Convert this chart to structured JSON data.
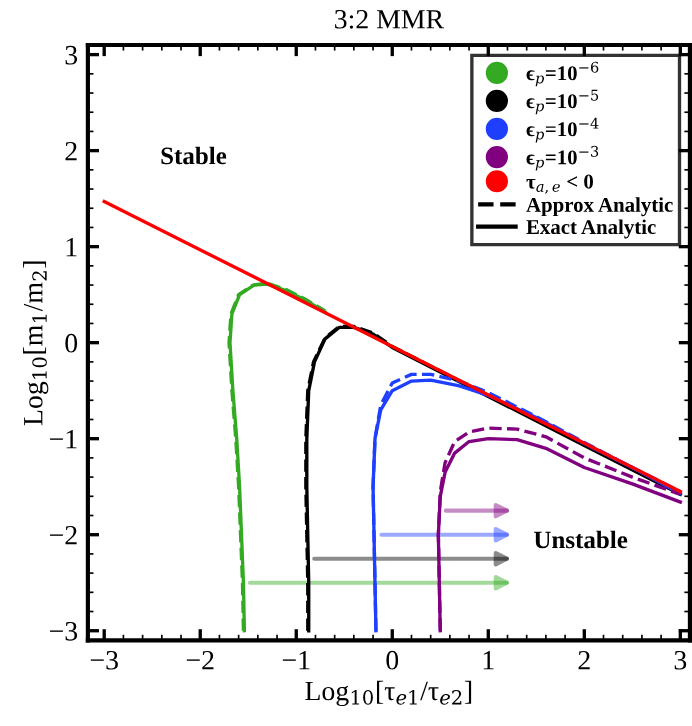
{
  "chart_data": {
    "type": "line",
    "title": "3:2 MMR",
    "xlabel": "Log$_{10}$[τ$_{e1}$/τ$_{e2}$]",
    "ylabel": "Log$_{10}$[m$_{1}$/m$_{2}$]",
    "xlim": [
      -3.17,
      3.1
    ],
    "ylim": [
      -3.1,
      3.1
    ],
    "xticks": [
      {
        "value": -3,
        "label": "−3"
      },
      {
        "value": -2,
        "label": "−2"
      },
      {
        "value": -1,
        "label": "−1"
      },
      0,
      1,
      2,
      3
    ],
    "yticks": [
      {
        "value": -3,
        "label": "−3"
      },
      {
        "value": -2,
        "label": "−2"
      },
      {
        "value": -1,
        "label": "−1"
      },
      0,
      1,
      2,
      3
    ],
    "annotations": [
      "Stable",
      "Unstable",
      "Approx Analytic",
      "Exact Analytic"
    ],
    "legend": "top right",
    "grid": false,
    "marker": "none",
    "series": [
      {
        "color": "#33aa22",
        "line_style": "dashed",
        "x": [
          -1.55,
          -1.56,
          -1.58,
          -1.6,
          -1.63,
          -1.67,
          -1.7,
          -1.68,
          -1.6,
          -1.45,
          -1.3,
          -1.1,
          -0.9,
          -0.7
        ],
        "values": [
          -3,
          -2.5,
          -2,
          -1.5,
          -1,
          -0.5,
          0,
          0.3,
          0.5,
          0.6,
          0.62,
          0.55,
          0.45,
          0.33
        ]
      },
      {
        "name": "ϵ$_{p}$=10$^{−6}$",
        "color": "#33aa22",
        "line_style": "solid",
        "x": [
          -1.54,
          -1.55,
          -1.57,
          -1.59,
          -1.62,
          -1.66,
          -1.69,
          -1.67,
          -1.59,
          -1.44,
          -1.3,
          -1.1,
          -0.9,
          -0.7
        ],
        "values": [
          -3,
          -2.5,
          -2,
          -1.5,
          -1,
          -0.5,
          0,
          0.3,
          0.5,
          0.6,
          0.61,
          0.54,
          0.44,
          0.32
        ]
      },
      {
        "color": "#000000",
        "line_style": "dashed",
        "x": [
          -0.88,
          -0.88,
          -0.89,
          -0.9,
          -0.9,
          -0.88,
          -0.82,
          -0.7,
          -0.55,
          -0.4,
          -0.2,
          0,
          1,
          2,
          3
        ],
        "values": [
          -3,
          -2.5,
          -2,
          -1.5,
          -1,
          -0.5,
          -0.2,
          0.05,
          0.17,
          0.17,
          0.1,
          -0.04,
          -0.55,
          -1.06,
          -1.57
        ]
      },
      {
        "name": "ϵ$_{p}$=10$^{−5}$",
        "color": "#000000",
        "line_style": "solid",
        "x": [
          -0.87,
          -0.87,
          -0.88,
          -0.89,
          -0.89,
          -0.87,
          -0.81,
          -0.7,
          -0.55,
          -0.4,
          -0.2,
          0,
          1,
          2,
          3
        ],
        "values": [
          -3,
          -2.5,
          -2,
          -1.5,
          -1,
          -0.5,
          -0.2,
          0.04,
          0.16,
          0.16,
          0.09,
          -0.05,
          -0.56,
          -1.07,
          -1.58
        ]
      },
      {
        "color": "#1f3fff",
        "line_style": "dashed",
        "x": [
          -0.17,
          -0.18,
          -0.19,
          -0.2,
          -0.18,
          -0.12,
          0,
          0.2,
          0.4,
          0.7,
          1.0,
          1.5,
          2,
          2.5,
          3
        ],
        "values": [
          -3,
          -2.5,
          -2,
          -1.5,
          -1,
          -0.65,
          -0.42,
          -0.33,
          -0.33,
          -0.4,
          -0.52,
          -0.77,
          -1.04,
          -1.3,
          -1.55
        ]
      },
      {
        "name": "ϵ$_{p}$=10$^{−4}$",
        "color": "#1f3fff",
        "line_style": "solid",
        "x": [
          -0.17,
          -0.18,
          -0.19,
          -0.2,
          -0.18,
          -0.12,
          0,
          0.2,
          0.4,
          0.7,
          1.0,
          1.5,
          2,
          2.5,
          3
        ],
        "values": [
          -3,
          -2.5,
          -2,
          -1.5,
          -1,
          -0.7,
          -0.5,
          -0.4,
          -0.39,
          -0.45,
          -0.55,
          -0.78,
          -1.05,
          -1.3,
          -1.57
        ]
      },
      {
        "color": "#800080",
        "line_style": "dashed",
        "x": [
          0.5,
          0.49,
          0.48,
          0.5,
          0.55,
          0.65,
          0.8,
          1.0,
          1.3,
          1.6,
          2,
          2.5,
          3
        ],
        "values": [
          -3,
          -2.5,
          -2,
          -1.55,
          -1.25,
          -1.03,
          -0.93,
          -0.89,
          -0.9,
          -0.98,
          -1.2,
          -1.4,
          -1.58
        ]
      },
      {
        "name": "ϵ$_{p}$=10$^{−3}$",
        "color": "#800080",
        "line_style": "solid",
        "x": [
          0.5,
          0.49,
          0.48,
          0.5,
          0.55,
          0.65,
          0.8,
          1.0,
          1.3,
          1.6,
          2,
          2.5,
          3
        ],
        "values": [
          -3,
          -2.5,
          -2,
          -1.6,
          -1.35,
          -1.15,
          -1.03,
          -1.0,
          -1.01,
          -1.1,
          -1.3,
          -1.47,
          -1.66
        ]
      },
      {
        "name": "τ$_{a,e}$ < 0",
        "color": "#ff0000",
        "line_style": "solid",
        "x": [
          -3,
          3
        ],
        "values": [
          1.47,
          -1.55
        ]
      }
    ]
  }
}
